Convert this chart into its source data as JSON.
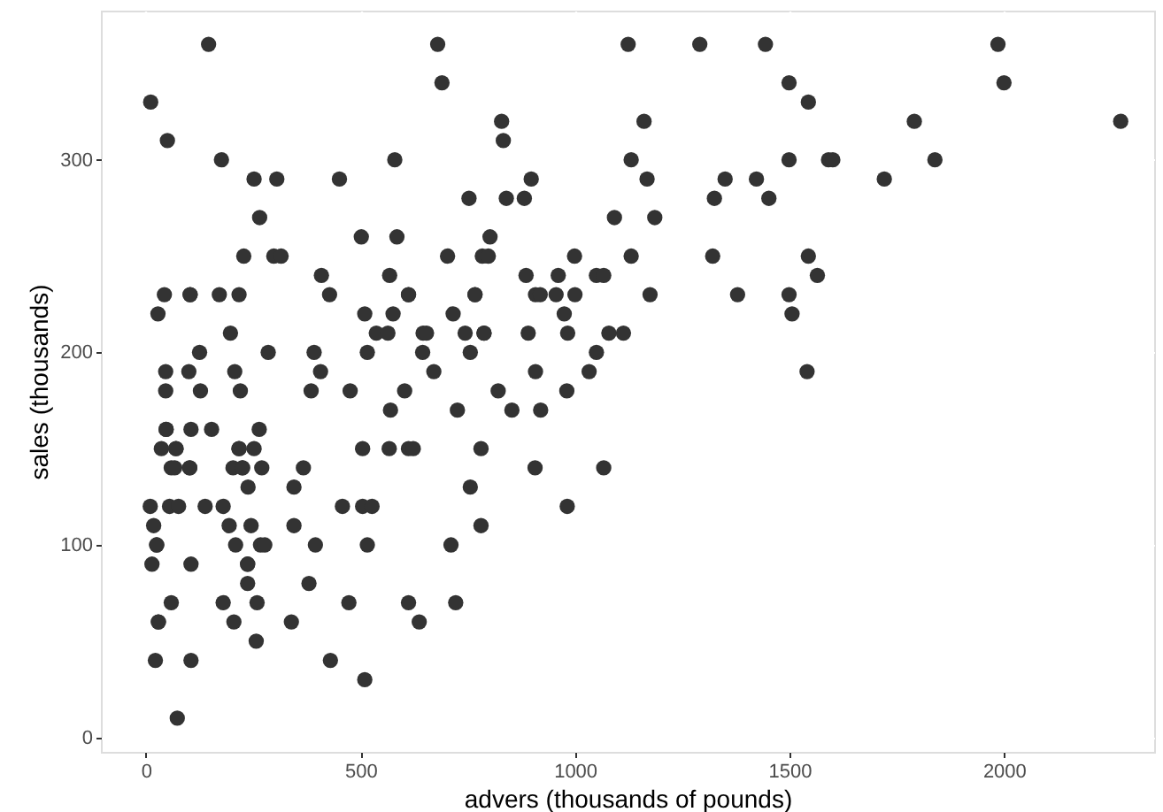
{
  "chart_data": {
    "type": "scatter",
    "xlabel": "advers (thousands of pounds)",
    "ylabel": "sales (thousands)",
    "xlim": [
      -105,
      2350
    ],
    "ylim": [
      -7.5,
      377.5
    ],
    "xticks": [
      0,
      500,
      1000,
      1500,
      2000
    ],
    "yticks": [
      0,
      100,
      200,
      300
    ],
    "grid": true,
    "marker": "circle",
    "series": [
      {
        "color": "#333333",
        "x": [
          146,
          11,
          50,
          176,
          252,
          305,
          451,
          580,
          680,
          690,
          265,
          502,
          585,
          228,
          298,
          315,
          703,
          409,
          568,
          43,
          103,
          103,
          171,
          217,
          428,
          612,
          612,
          28,
          510,
          576,
          716,
          197,
          537,
          564,
          646,
          654,
          125,
          285,
          392,
          516,
          645,
          46,
          100,
          207,
          407,
          671,
          46,
          127,
          220,
          385,
          476,
          603,
          570,
          726,
          47,
          47,
          105,
          153,
          264,
          36,
          70,
          70,
          217,
          217,
          252,
          505,
          567,
          612,
          623,
          59,
          67,
          102,
          102,
          203,
          225,
          225,
          270,
          367,
          238,
          345,
          10,
          55,
          76,
          138,
          180,
          458,
          505,
          527,
          18,
          194,
          245,
          345,
          25,
          25,
          209,
          267,
          277,
          395,
          516,
          711,
          14,
          105,
          237,
          237,
          237,
          380,
          59,
          180,
          259,
          473,
          612,
          722,
          29,
          29,
          205,
          339,
          637,
          257,
          22,
          105,
          430,
          510,
          73,
          1124,
          1291,
          1444,
          829,
          833,
          1161,
          1499,
          1544,
          1131,
          1499,
          1591,
          898,
          1168,
          1350,
          1423,
          753,
          840,
          882,
          1325,
          1452,
          1092,
          1186,
          802,
          784,
          798,
          999,
          1131,
          1321,
          1544,
          886,
          961,
          1050,
          1067,
          1565,
          767,
          767,
          908,
          919,
          956,
          1000,
          1175,
          1379,
          1499,
          975,
          1506,
          744,
          788,
          788,
          891,
          983,
          1079,
          1113,
          756,
          1050,
          908,
          1033,
          1541,
          821,
          981,
          853,
          920,
          781,
          907,
          1067,
          756,
          982,
          781,
          1986,
          2000,
          1791,
          2272,
          1601,
          1839,
          1721
        ],
        "values": [
          360,
          330,
          310,
          300,
          290,
          290,
          290,
          300,
          360,
          340,
          270,
          260,
          260,
          250,
          250,
          250,
          250,
          240,
          240,
          230,
          230,
          230,
          230,
          230,
          230,
          230,
          230,
          220,
          220,
          220,
          220,
          210,
          210,
          210,
          210,
          210,
          200,
          200,
          200,
          200,
          200,
          190,
          190,
          190,
          190,
          190,
          180,
          180,
          180,
          180,
          180,
          180,
          170,
          170,
          160,
          160,
          160,
          160,
          160,
          150,
          150,
          150,
          150,
          150,
          150,
          150,
          150,
          150,
          150,
          140,
          140,
          140,
          140,
          140,
          140,
          140,
          140,
          140,
          130,
          130,
          120,
          120,
          120,
          120,
          120,
          120,
          120,
          120,
          110,
          110,
          110,
          110,
          100,
          100,
          100,
          100,
          100,
          100,
          100,
          100,
          90,
          90,
          90,
          90,
          80,
          80,
          70,
          70,
          70,
          70,
          70,
          70,
          60,
          60,
          60,
          60,
          60,
          50,
          40,
          40,
          40,
          30,
          10,
          360,
          360,
          360,
          320,
          310,
          320,
          340,
          330,
          300,
          300,
          300,
          290,
          290,
          290,
          290,
          280,
          280,
          280,
          280,
          280,
          270,
          270,
          260,
          250,
          250,
          250,
          250,
          250,
          250,
          240,
          240,
          240,
          240,
          240,
          230,
          230,
          230,
          230,
          230,
          230,
          230,
          230,
          230,
          220,
          220,
          210,
          210,
          210,
          210,
          210,
          210,
          210,
          200,
          200,
          190,
          190,
          190,
          180,
          180,
          170,
          170,
          150,
          140,
          140,
          130,
          120,
          110,
          360,
          340,
          320,
          320,
          300,
          300,
          290
        ]
      }
    ]
  }
}
